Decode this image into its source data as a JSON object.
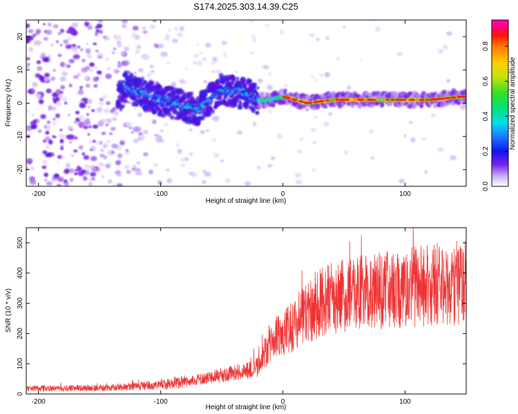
{
  "title": "S174.2025.303.14.39.C25",
  "chart_data": [
    {
      "type": "heatmap",
      "xlabel": "Height of straight line (km)",
      "ylabel": "Frequency (Hz)",
      "xlim": [
        -210,
        150
      ],
      "ylim": [
        -25,
        25
      ],
      "xticks": [
        "-200",
        "-100",
        "0",
        "100"
      ],
      "yticks": [
        "-20",
        "-10",
        "0",
        "10",
        "20"
      ],
      "colorbar": {
        "label": "Normalized spectral amplitude",
        "range": [
          0.0,
          0.95
        ],
        "ticks": [
          "0.0",
          "0.2",
          "0.4",
          "0.6",
          "0.8"
        ]
      },
      "dominant_frequency_track": {
        "x": [
          -130,
          -110,
          -90,
          -70,
          -50,
          -30,
          -20,
          -10,
          0,
          10,
          20,
          40,
          60,
          80,
          100,
          120,
          148
        ],
        "y": [
          5,
          2,
          0,
          -2,
          4,
          3,
          1,
          1,
          2,
          1,
          0,
          1,
          1,
          1,
          1,
          1,
          2
        ]
      }
    },
    {
      "type": "line",
      "xlabel": "Height of straight line (km)",
      "ylabel": "SNR (10 * v/v)",
      "xlim": [
        -210,
        150
      ],
      "ylim": [
        0,
        550
      ],
      "xticks": [
        "-200",
        "-100",
        "0",
        "100"
      ],
      "yticks": [
        "0",
        "100",
        "200",
        "300",
        "400",
        "500"
      ],
      "series": [
        {
          "name": "SNR",
          "color": "#ee3333",
          "envelope_x": [
            -210,
            -150,
            -120,
            -100,
            -80,
            -60,
            -40,
            -30,
            -20,
            -10,
            0,
            10,
            20,
            30,
            40,
            60,
            80,
            100,
            120,
            150
          ],
          "envelope_mean": [
            18,
            20,
            25,
            30,
            40,
            55,
            70,
            75,
            90,
            180,
            200,
            230,
            270,
            300,
            320,
            330,
            340,
            350,
            360,
            370
          ]
        }
      ]
    }
  ]
}
